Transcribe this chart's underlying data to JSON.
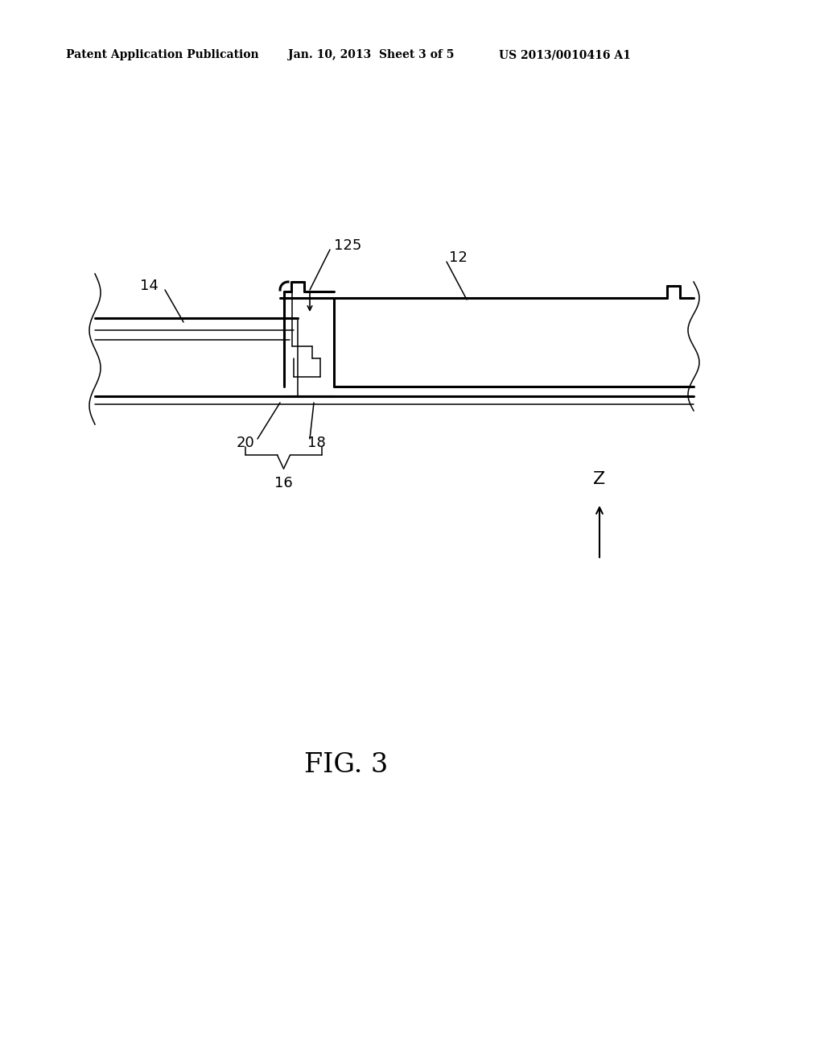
{
  "bg_color": "#ffffff",
  "line_color": "#000000",
  "header_left": "Patent Application Publication",
  "header_mid": "Jan. 10, 2013  Sheet 3 of 5",
  "header_right": "US 2013/0010416 A1",
  "fig_label": "FIG. 3",
  "lw_thick": 2.2,
  "lw_thin": 1.1,
  "lw_med": 1.5,
  "label_fontsize": 13,
  "header_fontsize": 10,
  "fig_fontsize": 24
}
